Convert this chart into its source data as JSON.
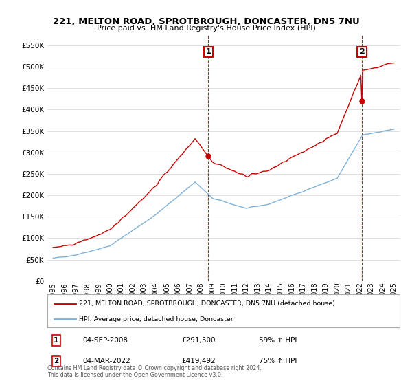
{
  "title": "221, MELTON ROAD, SPROTBROUGH, DONCASTER, DN5 7NU",
  "subtitle": "Price paid vs. HM Land Registry's House Price Index (HPI)",
  "ylim": [
    0,
    575000
  ],
  "yticks": [
    0,
    50000,
    100000,
    150000,
    200000,
    250000,
    300000,
    350000,
    400000,
    450000,
    500000,
    550000
  ],
  "ytick_labels": [
    "£0",
    "£50K",
    "£100K",
    "£150K",
    "£200K",
    "£250K",
    "£300K",
    "£350K",
    "£400K",
    "£450K",
    "£500K",
    "£550K"
  ],
  "legend_entry1": "221, MELTON ROAD, SPROTBROUGH, DONCASTER, DN5 7NU (detached house)",
  "legend_entry2": "HPI: Average price, detached house, Doncaster",
  "annotation1_date": "04-SEP-2008",
  "annotation1_price": "£291,500",
  "annotation1_hpi": "59% ↑ HPI",
  "annotation2_date": "04-MAR-2022",
  "annotation2_price": "£419,492",
  "annotation2_hpi": "75% ↑ HPI",
  "copyright": "Contains HM Land Registry data © Crown copyright and database right 2024.\nThis data is licensed under the Open Government Licence v3.0.",
  "line1_color": "#cc0000",
  "line2_color": "#7fb2d8",
  "vline_color": "#cc0000",
  "annotation_box_color": "#cc0000",
  "background_color": "#ffffff",
  "grid_color": "#e0e0e0",
  "sale1_year": 2008.67,
  "sale1_price": 291500,
  "sale2_year": 2022.17,
  "sale2_price": 419492
}
